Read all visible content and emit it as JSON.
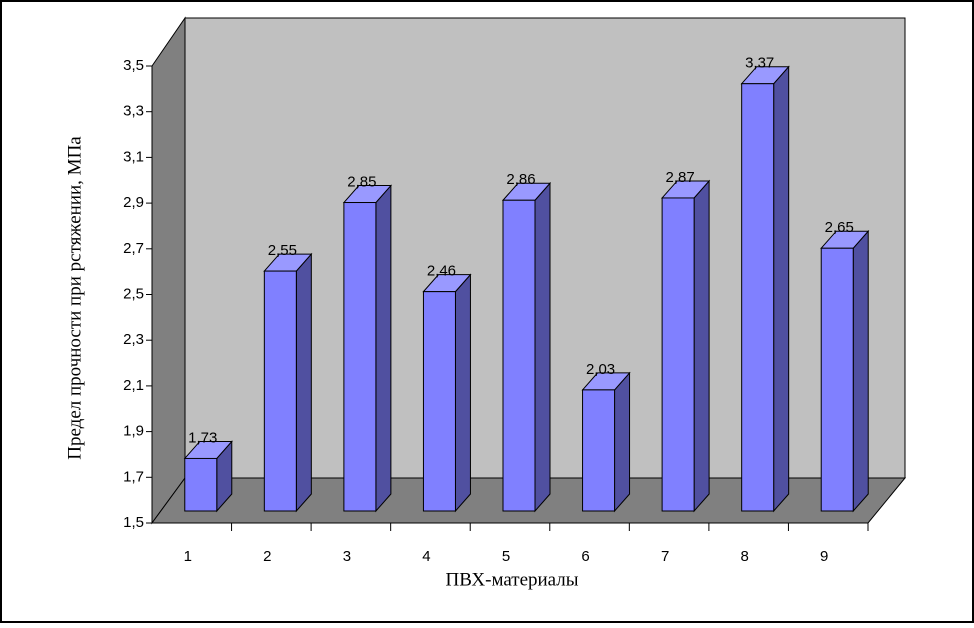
{
  "chart_data": {
    "type": "bar3d",
    "y_label": "Предел прочности при рстяжении, МПа",
    "x_label": "ПВХ-материалы",
    "categories": [
      "1",
      "2",
      "3",
      "4",
      "5",
      "6",
      "7",
      "8",
      "9"
    ],
    "values": [
      1.73,
      2.55,
      2.85,
      2.46,
      2.86,
      2.03,
      2.87,
      3.37,
      2.65
    ],
    "value_labels": [
      "1,73",
      "2,55",
      "2,85",
      "2,46",
      "2,86",
      "2,03",
      "2,87",
      "3,37",
      "2,65"
    ],
    "color": "#8080ff",
    "ylim": [
      1.5,
      3.5
    ],
    "yticks": [
      {
        "value": 1.5,
        "label": "1,5"
      },
      {
        "value": 1.7,
        "label": "1,7"
      },
      {
        "value": 1.9,
        "label": "1,9"
      },
      {
        "value": 2.1,
        "label": "2,1"
      },
      {
        "value": 2.3,
        "label": "2,3"
      },
      {
        "value": 2.5,
        "label": "2,5"
      },
      {
        "value": 2.7,
        "label": "2,7"
      },
      {
        "value": 2.9,
        "label": "2,9"
      },
      {
        "value": 3.1,
        "label": "3,1"
      },
      {
        "value": 3.3,
        "label": "3,3"
      },
      {
        "value": 3.5,
        "label": "3,5"
      }
    ]
  }
}
